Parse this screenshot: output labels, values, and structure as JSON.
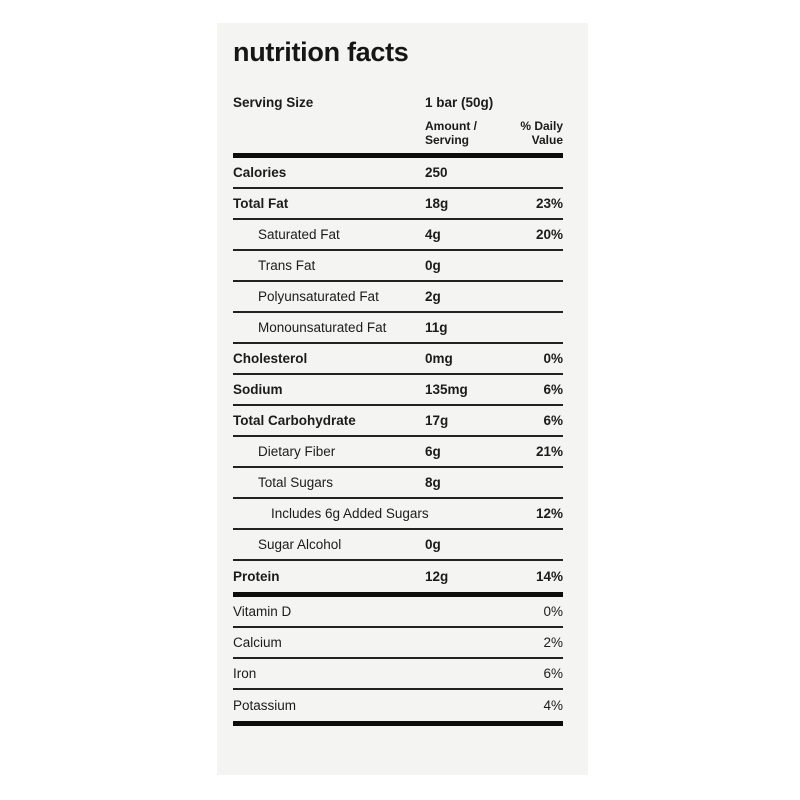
{
  "colors": {
    "page_bg": "#ffffff",
    "card_bg": "#f4f4f2",
    "text": "#1b1b1b",
    "thin_rule": "#222222",
    "thick_rule": "#0d0d0d"
  },
  "card": {
    "title": "nutrition facts",
    "serving_label": "Serving Size",
    "serving_value": "1 bar (50g)",
    "columns": {
      "amount_line1": "Amount /",
      "amount_line2": "Serving",
      "daily_line1": "% Daily",
      "daily_line2": "Value"
    }
  },
  "rows": [
    {
      "label": "Calories",
      "amount": "250",
      "percent": ""
    },
    {
      "label": "Total Fat",
      "amount": "18g",
      "percent": "23%"
    },
    {
      "label": "Saturated Fat",
      "amount": "4g",
      "percent": "20%"
    },
    {
      "label": "Trans Fat",
      "amount": "0g",
      "percent": ""
    },
    {
      "label": "Polyunsaturated Fat",
      "amount": "2g",
      "percent": ""
    },
    {
      "label": "Monounsaturated Fat",
      "amount": "11g",
      "percent": ""
    },
    {
      "label": "Cholesterol",
      "amount": "0mg",
      "percent": "0%"
    },
    {
      "label": "Sodium",
      "amount": "135mg",
      "percent": "6%"
    },
    {
      "label": "Total Carbohydrate",
      "amount": "17g",
      "percent": "6%"
    },
    {
      "label": "Dietary Fiber",
      "amount": "6g",
      "percent": "21%"
    },
    {
      "label": "Total Sugars",
      "amount": "8g",
      "percent": ""
    },
    {
      "label": "Includes 6g Added Sugars",
      "amount": "",
      "percent": "12%"
    },
    {
      "label": "Sugar Alcohol",
      "amount": "0g",
      "percent": ""
    },
    {
      "label": "Protein",
      "amount": "12g",
      "percent": "14%"
    }
  ],
  "micronutrients": [
    {
      "label": "Vitamin D",
      "percent": "0%"
    },
    {
      "label": "Calcium",
      "percent": "2%"
    },
    {
      "label": "Iron",
      "percent": "6%"
    },
    {
      "label": "Potassium",
      "percent": "4%"
    }
  ]
}
